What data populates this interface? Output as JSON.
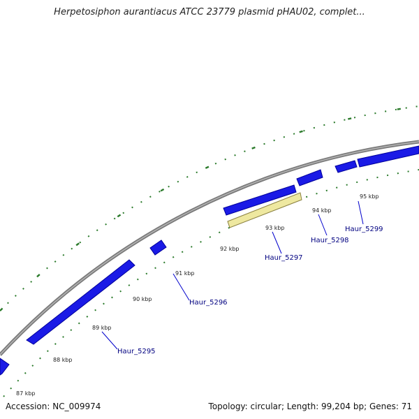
{
  "title": "Herpetosiphon aurantiacus ATCC 23779 plasmid pHAU02, complet...",
  "footer": {
    "accession": "Accession: NC_009974",
    "summary": "Topology: circular; Length: 99,204 bp; Genes: 71"
  },
  "colors": {
    "backbone": "#888888",
    "gene": "#1010e0",
    "highlight": "#eee8a0",
    "tick": "#2a7a2a",
    "label": "#000080"
  },
  "kbp_ticks": [
    "87 kbp",
    "88 kbp",
    "89 kbp",
    "90 kbp",
    "91 kbp",
    "92 kbp",
    "93 kbp",
    "94 kbp",
    "95 kbp"
  ],
  "genes": [
    {
      "label": "Haur_5295"
    },
    {
      "label": "Haur_5296"
    },
    {
      "label": "Haur_5297"
    },
    {
      "label": "Haur_5298"
    },
    {
      "label": "Haur_5299"
    }
  ]
}
